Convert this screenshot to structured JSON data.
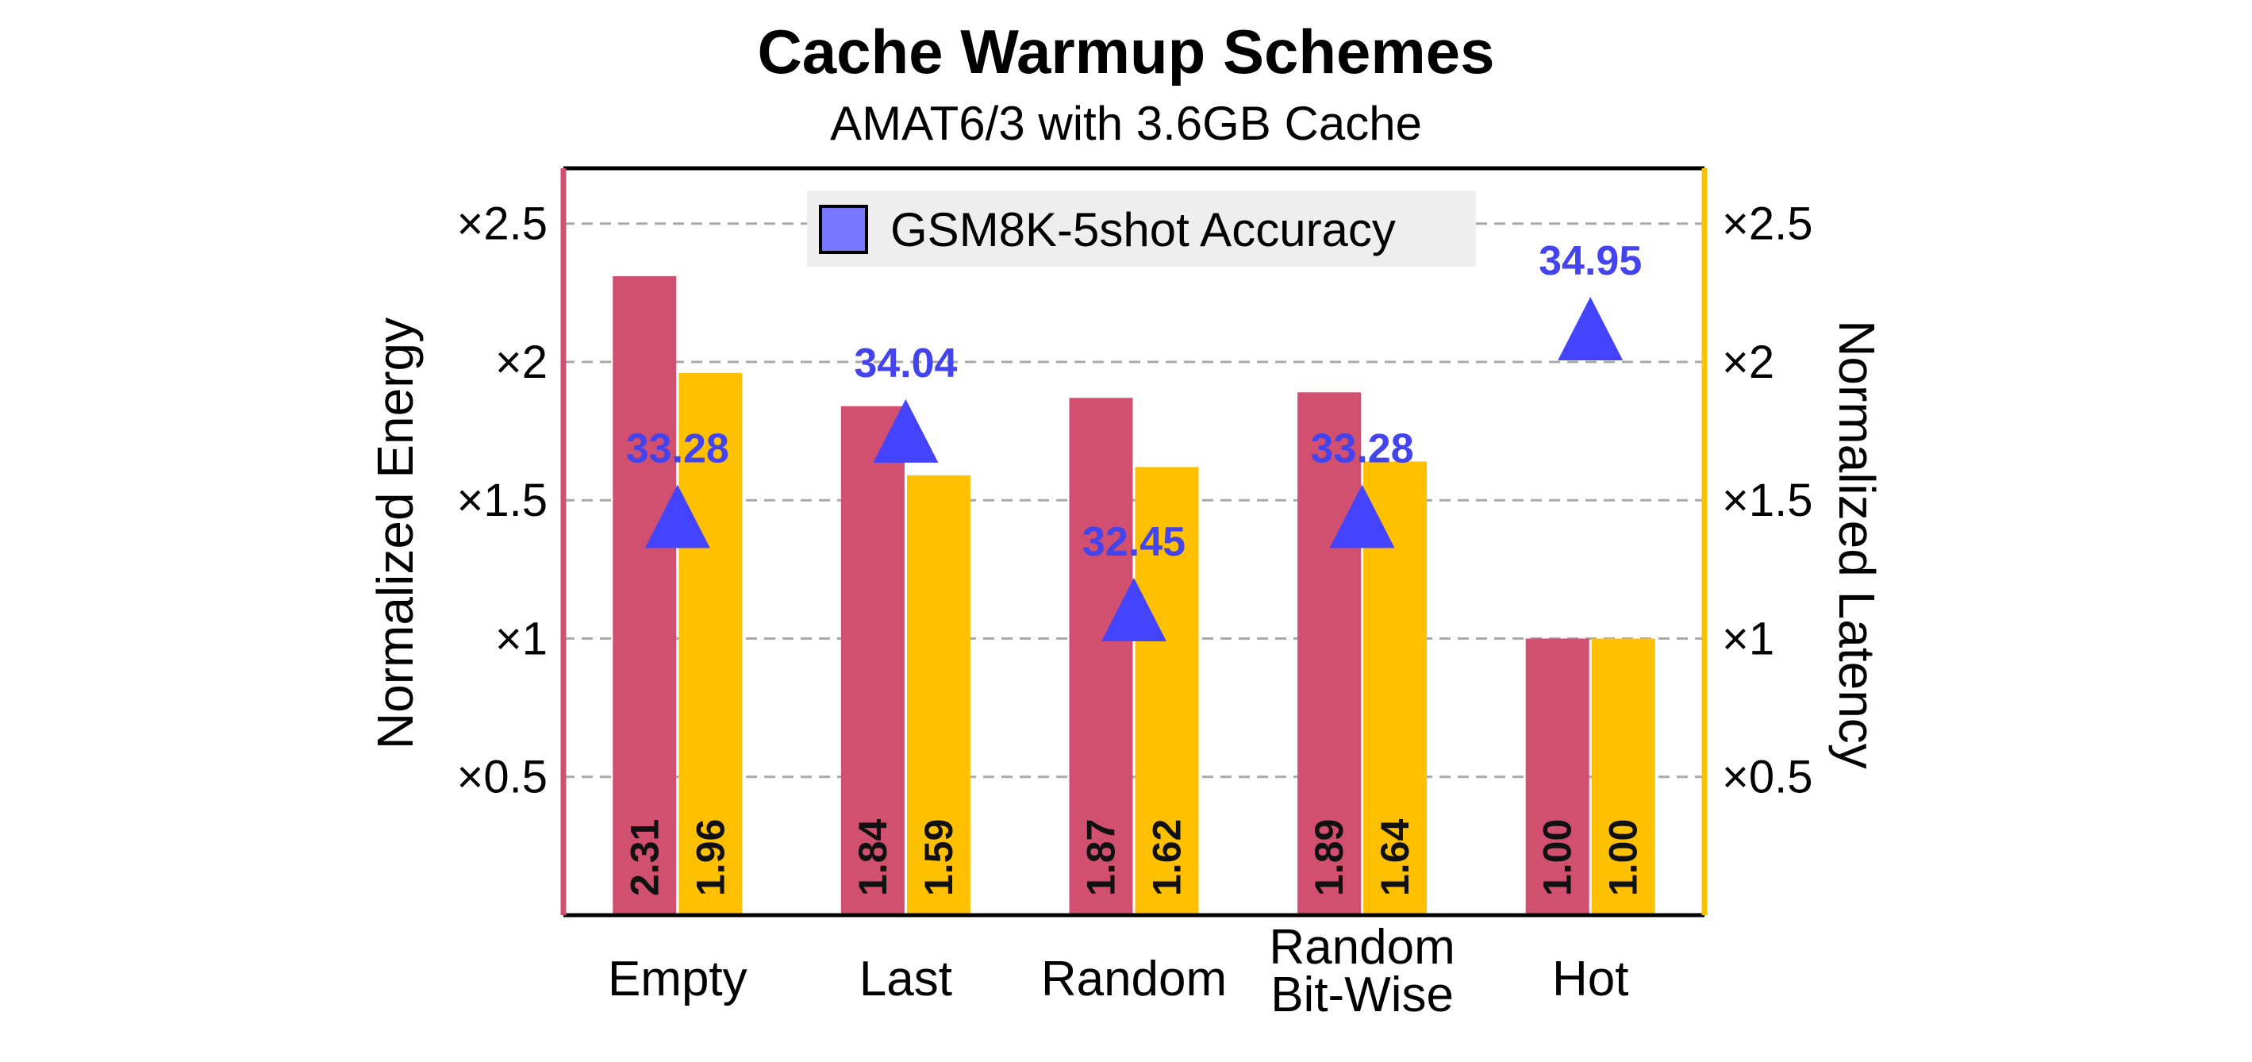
{
  "chart_data": {
    "type": "bar",
    "title": "Cache Warmup Schemes",
    "subtitle": "AMAT6/3 with 3.6GB Cache",
    "categories": [
      [
        "Empty"
      ],
      [
        "Last"
      ],
      [
        "Random"
      ],
      [
        "Random",
        "Bit-Wise"
      ],
      [
        "Hot"
      ]
    ],
    "series": [
      {
        "values": [
          2.31,
          1.84,
          1.87,
          1.89,
          1.0
        ],
        "labels": [
          "2.31",
          "1.84",
          "1.87",
          "1.89",
          "1.00"
        ],
        "color": "#D1506F",
        "axis": "left"
      },
      {
        "values": [
          1.96,
          1.59,
          1.62,
          1.64,
          1.0
        ],
        "labels": [
          "1.96",
          "1.59",
          "1.62",
          "1.64",
          "1.00"
        ],
        "color": "#FFC000",
        "axis": "right"
      }
    ],
    "marker_series": {
      "name": "GSM8K-5shot Accuracy",
      "values": [
        33.28,
        34.04,
        32.45,
        33.28,
        34.95
      ],
      "labels": [
        "33.28",
        "34.04",
        "32.45",
        "33.28",
        "34.95"
      ],
      "color": "#4444FF",
      "label_color": "#4444EE",
      "legend_fill": "#7777FF"
    },
    "ylabel": "Normalized Energy",
    "y2label": "Normalized Latency",
    "ylim": [
      0,
      2.7
    ],
    "yticks": [
      0.5,
      1,
      1.5,
      2,
      2.5
    ],
    "ytick_labels": [
      "×0.5",
      "×1",
      "×1.5",
      "×2",
      "×2.5"
    ],
    "grid": true,
    "legend_position": "top-center",
    "left_axis_color": "#D1506F",
    "right_axis_color": "#FFC000"
  }
}
